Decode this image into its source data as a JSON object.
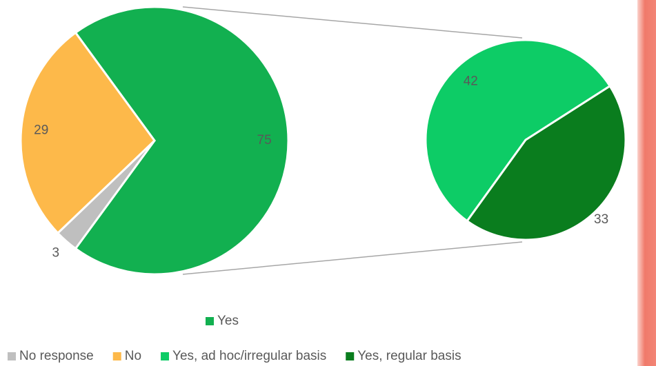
{
  "chart_data": {
    "type": "pie_of_pie",
    "categories": [
      "Yes",
      "No response",
      "No"
    ],
    "values": [
      75,
      3,
      29
    ],
    "colors": [
      "#12b050",
      "#bfbfbf",
      "#fdb94a"
    ],
    "secondary": {
      "categories": [
        "Yes, ad hoc/irregular basis",
        "Yes, regular basis"
      ],
      "values": [
        42,
        33
      ],
      "colors": [
        "#0dcc66",
        "#0a7d1e"
      ]
    }
  }
}
